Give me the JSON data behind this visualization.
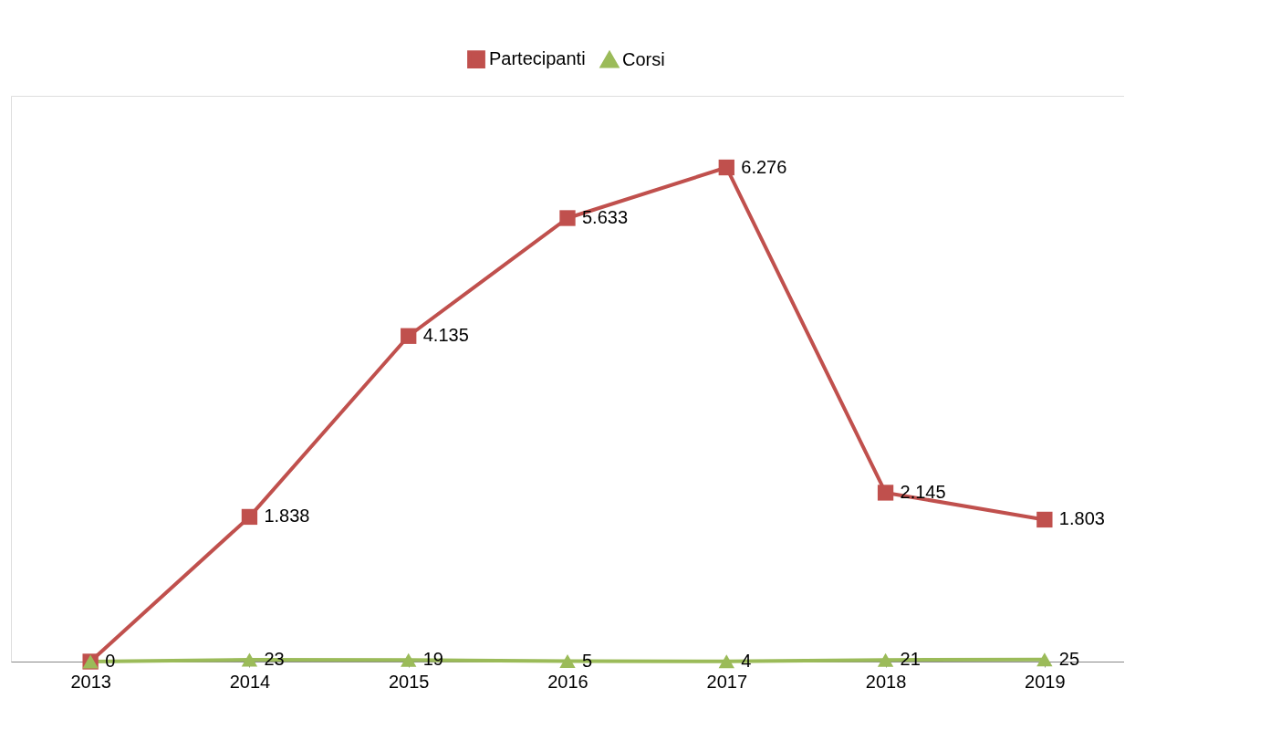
{
  "chart_data": {
    "type": "line",
    "categories": [
      "2013",
      "2014",
      "2015",
      "2016",
      "2017",
      "2018",
      "2019"
    ],
    "series": [
      {
        "name": "Partecipanti",
        "color": "#c0504d",
        "marker": "square",
        "values": [
          0,
          1838,
          4135,
          5633,
          6276,
          2145,
          1803
        ],
        "value_labels": [
          null,
          "1.838",
          "4.135",
          "5.633",
          "6.276",
          "2.145",
          "1.803"
        ]
      },
      {
        "name": "Corsi",
        "color": "#9bbb59",
        "marker": "triangle",
        "values": [
          0,
          23,
          19,
          5,
          4,
          21,
          25
        ],
        "value_labels": [
          "0",
          "23",
          "19",
          "5",
          "4",
          "21",
          "25"
        ]
      }
    ],
    "legend": "top",
    "grid": false,
    "line_style": "solid",
    "tick_labels": "x"
  }
}
